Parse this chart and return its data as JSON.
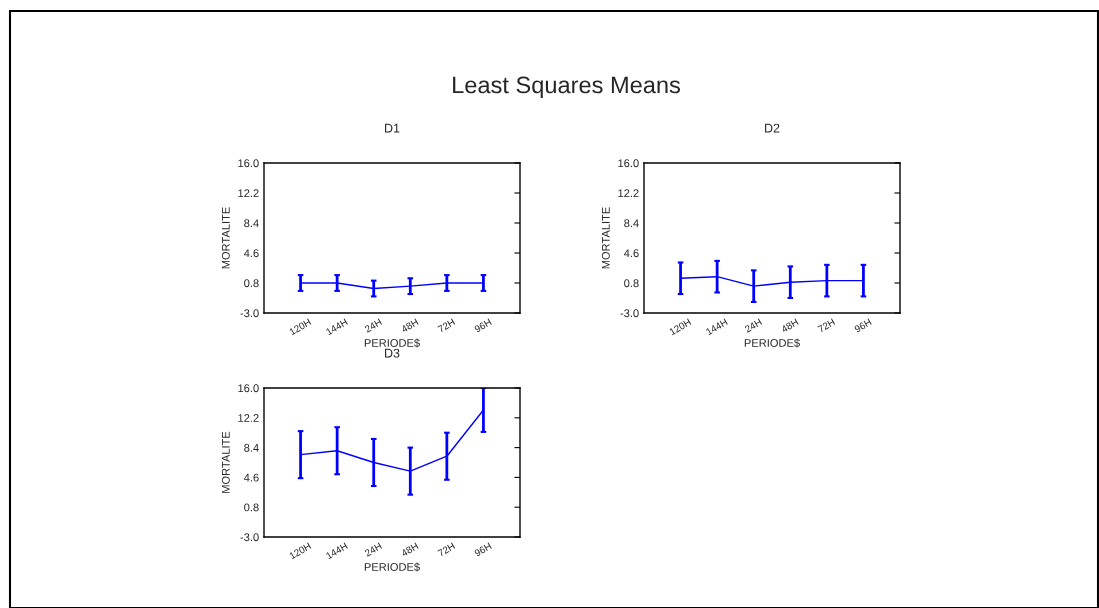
{
  "chart_data": [
    {
      "type": "line",
      "title": "D1",
      "xlabel": "PERIODE$",
      "ylabel": "MORTALITE",
      "annotations": [
        "Least Squares Means"
      ],
      "categories": [
        "120H",
        "144H",
        "24H",
        "48H",
        "72H",
        "96H"
      ],
      "series": [
        {
          "color": "#0000ff",
          "values": [
            0.8,
            0.8,
            0.1,
            0.4,
            0.8,
            0.8
          ],
          "errors": [
            1.0,
            1.0,
            1.0,
            1.0,
            1.0,
            1.0
          ]
        }
      ],
      "ylim": [
        -3.0,
        16.0
      ],
      "yticks": [
        {
          "value": -3.0,
          "label": "-3.0"
        },
        {
          "value": 0.8,
          "label": "0.8"
        },
        {
          "value": 4.6,
          "label": "4.6"
        },
        {
          "value": 8.4,
          "label": "8.4"
        },
        {
          "value": 12.2,
          "label": "12.2"
        },
        {
          "value": 16.0,
          "label": "16.0"
        }
      ],
      "grid": false,
      "legend": false,
      "marker": "none",
      "line_style": "solid"
    },
    {
      "type": "line",
      "title": "D2",
      "xlabel": "PERIODE$",
      "ylabel": "MORTALITE",
      "categories": [
        "120H",
        "144H",
        "24H",
        "48H",
        "72H",
        "96H"
      ],
      "series": [
        {
          "color": "#0000ff",
          "values": [
            1.4,
            1.6,
            0.4,
            0.9,
            1.1,
            1.1
          ],
          "errors": [
            2.0,
            2.0,
            2.0,
            2.0,
            2.0,
            2.0
          ]
        }
      ],
      "ylim": [
        -3.0,
        16.0
      ],
      "yticks": [
        {
          "value": -3.0,
          "label": "-3.0"
        },
        {
          "value": 0.8,
          "label": "0.8"
        },
        {
          "value": 4.6,
          "label": "4.6"
        },
        {
          "value": 8.4,
          "label": "8.4"
        },
        {
          "value": 12.2,
          "label": "12.2"
        },
        {
          "value": 16.0,
          "label": "16.0"
        }
      ],
      "grid": false,
      "legend": false,
      "marker": "none",
      "line_style": "solid"
    },
    {
      "type": "line",
      "title": "D3",
      "xlabel": "PERIODE$",
      "ylabel": "MORTALITE",
      "categories": [
        "120H",
        "144H",
        "24H",
        "48H",
        "72H",
        "96H"
      ],
      "series": [
        {
          "color": "#0000ff",
          "values": [
            7.5,
            8.0,
            6.5,
            5.4,
            7.3,
            13.2
          ],
          "errors": [
            3.0,
            3.0,
            3.0,
            3.0,
            3.0,
            2.8
          ]
        }
      ],
      "ylim": [
        -3.0,
        16.0
      ],
      "yticks": [
        {
          "value": -3.0,
          "label": "-3.0"
        },
        {
          "value": 0.8,
          "label": "0.8"
        },
        {
          "value": 4.6,
          "label": "4.6"
        },
        {
          "value": 8.4,
          "label": "8.4"
        },
        {
          "value": 12.2,
          "label": "12.2"
        },
        {
          "value": 16.0,
          "label": "16.0"
        }
      ],
      "grid": false,
      "legend": false,
      "marker": "none",
      "line_style": "solid"
    }
  ]
}
